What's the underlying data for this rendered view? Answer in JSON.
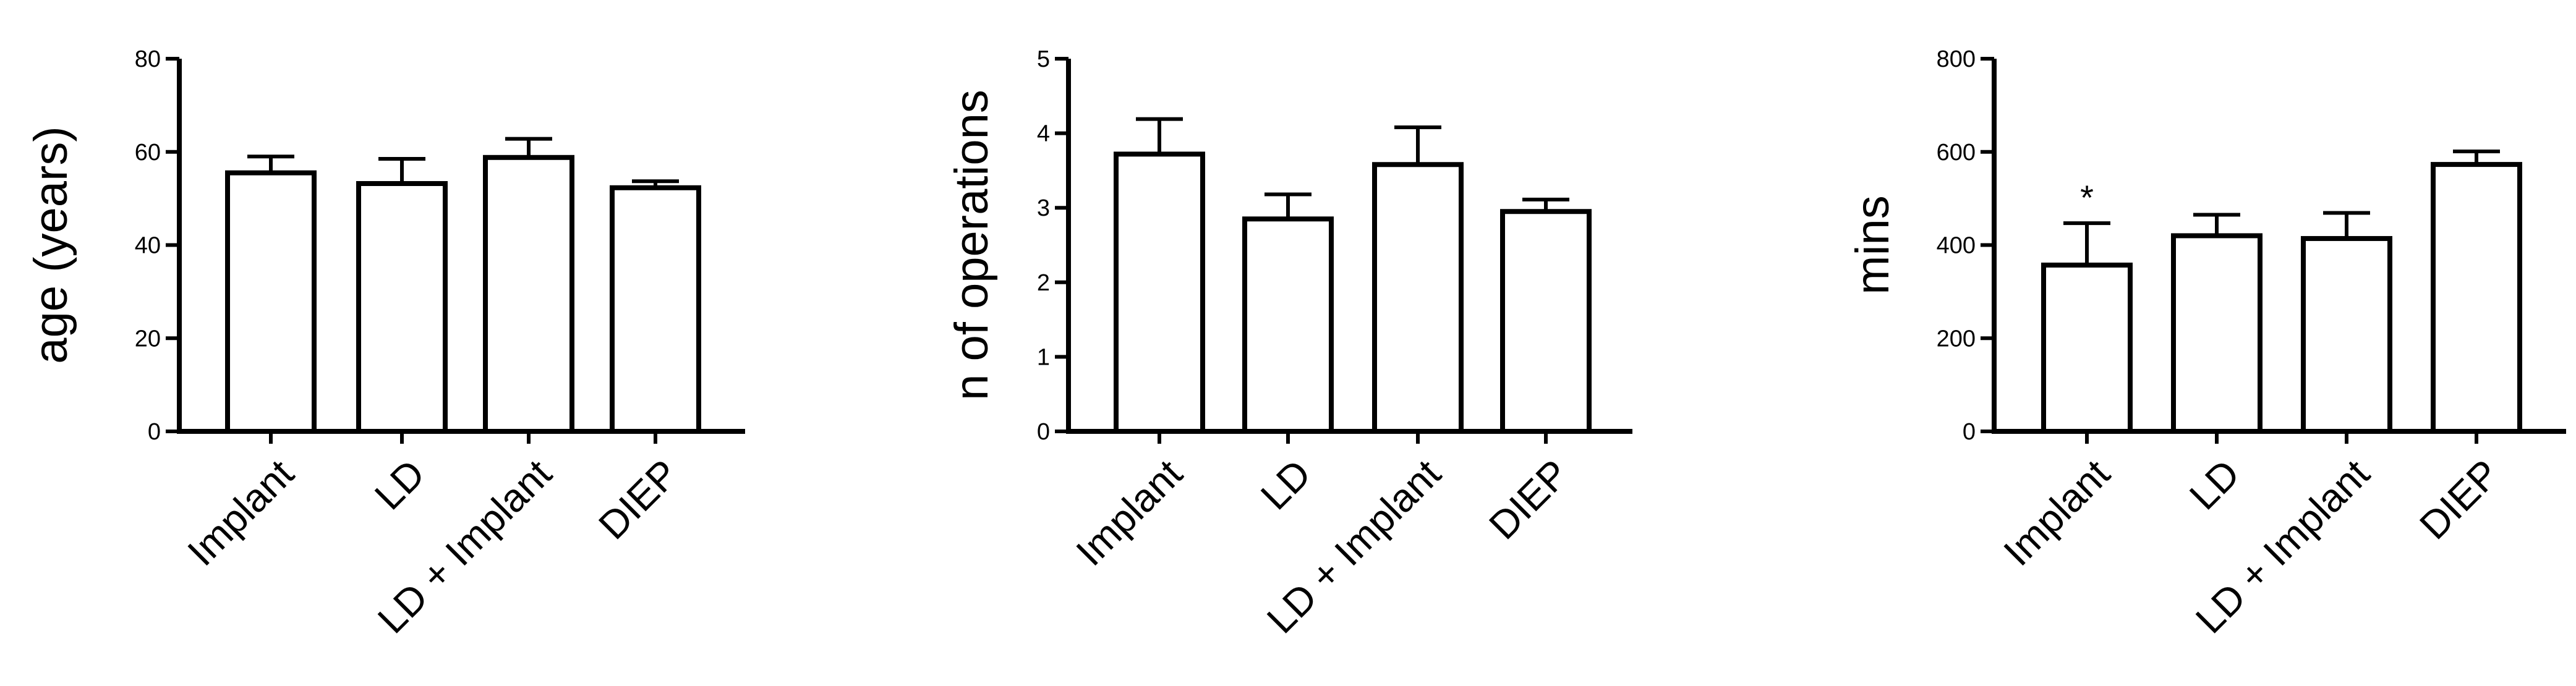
{
  "chart_data": [
    {
      "type": "bar",
      "ylabel": "age (years)",
      "categories": [
        "Implant",
        "LD",
        "LD + Implant",
        "DIEP"
      ],
      "values": [
        55.5,
        53.2,
        58.8,
        52.3
      ],
      "errors": [
        3.5,
        5.3,
        4.0,
        1.4
      ],
      "ylim": [
        0,
        80
      ],
      "yticks": [
        "0",
        "20",
        "40",
        "60",
        "80"
      ],
      "annotations": [
        "",
        "",
        "",
        ""
      ]
    },
    {
      "type": "bar",
      "ylabel": "n of operations",
      "categories": [
        "Implant",
        "LD",
        "LD + Implant",
        "DIEP"
      ],
      "values": [
        3.72,
        2.85,
        3.58,
        2.95
      ],
      "errors": [
        0.47,
        0.33,
        0.5,
        0.16
      ],
      "ylim": [
        0,
        5
      ],
      "yticks": [
        "0",
        "1",
        "2",
        "3",
        "4",
        "5"
      ],
      "annotations": [
        "",
        "",
        "",
        ""
      ]
    },
    {
      "type": "bar",
      "ylabel": "mins",
      "categories": [
        "Implant",
        "LD",
        "LD + Implant",
        "DIEP"
      ],
      "values": [
        357,
        420,
        414,
        573
      ],
      "errors": [
        90,
        45,
        55,
        28
      ],
      "ylim": [
        0,
        800
      ],
      "yticks": [
        "0",
        "200",
        "400",
        "600",
        "800"
      ],
      "annotations": [
        "*",
        "",
        "",
        ""
      ]
    }
  ]
}
